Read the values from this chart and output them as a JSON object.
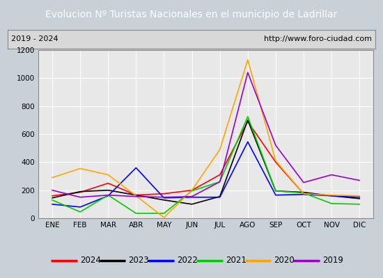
{
  "title": "Evolucion Nº Turistas Nacionales en el municipio de Ladrillar",
  "subtitle_left": "2019 - 2024",
  "subtitle_right": "http://www.foro-ciudad.com",
  "months": [
    "ENE",
    "FEB",
    "MAR",
    "ABR",
    "MAY",
    "JUN",
    "JUL",
    "AGO",
    "SEP",
    "OCT",
    "NOV",
    "DIC"
  ],
  "ylim": [
    0,
    1200
  ],
  "yticks": [
    0,
    200,
    400,
    600,
    800,
    1000,
    1200
  ],
  "series": {
    "2024": {
      "color": "#ff0000",
      "values": [
        160,
        185,
        250,
        165,
        175,
        200,
        310,
        690,
        400,
        175,
        null,
        null
      ]
    },
    "2023": {
      "color": "#000000",
      "values": [
        145,
        190,
        200,
        165,
        130,
        100,
        155,
        700,
        195,
        185,
        160,
        140
      ]
    },
    "2022": {
      "color": "#0000ff",
      "values": [
        100,
        80,
        160,
        360,
        145,
        150,
        150,
        545,
        165,
        170,
        160,
        150
      ]
    },
    "2021": {
      "color": "#00cc00",
      "values": [
        130,
        45,
        165,
        35,
        35,
        195,
        260,
        725,
        195,
        180,
        105,
        100
      ]
    },
    "2020": {
      "color": "#ffa500",
      "values": [
        290,
        355,
        310,
        160,
        5,
        200,
        490,
        1130,
        410,
        175,
        165,
        160
      ]
    },
    "2019": {
      "color": "#9900cc",
      "values": [
        200,
        150,
        165,
        155,
        150,
        155,
        260,
        1040,
        520,
        255,
        310,
        270
      ]
    }
  },
  "legend_order": [
    "2024",
    "2023",
    "2022",
    "2021",
    "2020",
    "2019"
  ],
  "title_fontsize": 10,
  "title_color": "#ffffff",
  "title_bg": "#4472c4",
  "subtitle_fontsize": 8,
  "tick_fontsize": 7.5,
  "plot_bg": "#e8e8e8",
  "grid_color": "#ffffff",
  "border_color": "#888888",
  "outer_bg": "#c8d0d8"
}
